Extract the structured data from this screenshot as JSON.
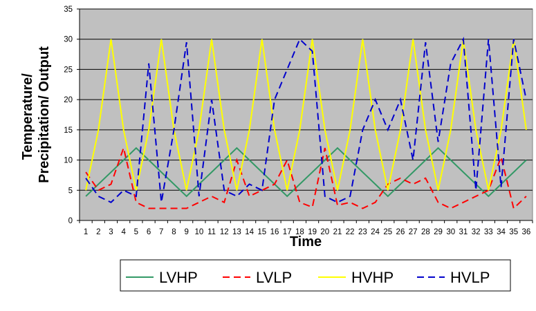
{
  "chart_data": {
    "type": "line",
    "title": "",
    "xlabel": "Time",
    "ylabel_lines": [
      "Temperature/",
      "Precipitation/ Output"
    ],
    "ylim": [
      0,
      35
    ],
    "yticks": [
      0,
      5,
      10,
      15,
      20,
      25,
      30,
      35
    ],
    "x": [
      1,
      2,
      3,
      4,
      5,
      6,
      7,
      8,
      9,
      10,
      11,
      12,
      13,
      14,
      15,
      16,
      17,
      18,
      19,
      20,
      21,
      22,
      23,
      24,
      25,
      26,
      27,
      28,
      29,
      30,
      31,
      32,
      33,
      34,
      35,
      36
    ],
    "plot_background": "#c0c0c0",
    "grid": "horizontal",
    "legend_position": "bottom",
    "series": [
      {
        "name": "LVHP",
        "color": "#339966",
        "dash": "solid",
        "values": [
          4,
          6,
          8,
          10,
          12,
          10,
          8,
          6,
          4,
          6,
          8,
          10,
          12,
          10,
          8,
          6,
          4,
          6,
          8,
          10,
          12,
          10,
          8,
          6,
          4,
          6,
          8,
          10,
          12,
          10,
          8,
          6,
          4,
          6,
          8,
          10
        ]
      },
      {
        "name": "LVLP",
        "color": "#ff0000",
        "dash": "dashed",
        "values": [
          8,
          5,
          6,
          12,
          3,
          2,
          2,
          2,
          2,
          3,
          4,
          3,
          10,
          4,
          5,
          6,
          10,
          3,
          2.2,
          12,
          2.5,
          3,
          2,
          3,
          6,
          7,
          6,
          7,
          3,
          2,
          3,
          4,
          5,
          10.5,
          2,
          4
        ]
      },
      {
        "name": "HVHP",
        "color": "#ffff00",
        "dash": "solid",
        "values": [
          5,
          15,
          30,
          15,
          5,
          15,
          30,
          15,
          5,
          15,
          30,
          15,
          5,
          15,
          30,
          15,
          5,
          15,
          30,
          15,
          5,
          15,
          30,
          15,
          5,
          15,
          30,
          15,
          5,
          15,
          30,
          15,
          5,
          15,
          30,
          15
        ]
      },
      {
        "name": "HVLP",
        "color": "#0000cc",
        "dash": "dashed",
        "values": [
          7,
          4,
          3,
          5,
          4,
          26,
          3,
          15,
          29.5,
          4,
          20,
          5,
          4,
          6,
          5,
          20,
          25,
          30,
          28,
          4,
          3,
          4,
          15,
          20,
          15,
          20,
          10,
          29.5,
          13,
          26,
          30,
          5,
          30,
          5.5,
          30,
          20
        ]
      }
    ]
  }
}
